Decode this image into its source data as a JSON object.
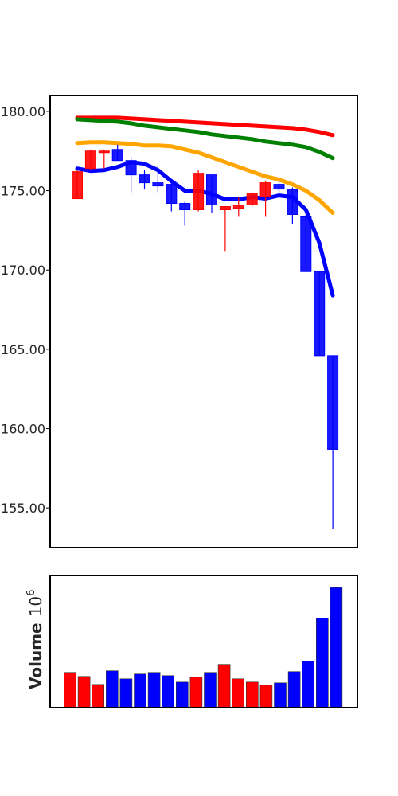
{
  "chart_data": [
    {
      "type": "candlestick",
      "title": "",
      "xlabel": "",
      "ylabel": "",
      "ylim": [
        152.5,
        181.0
      ],
      "yticks": [
        "155.00",
        "160.00",
        "165.00",
        "170.00",
        "175.00",
        "180.00"
      ],
      "ytick_values": [
        155,
        160,
        165,
        170,
        175,
        180
      ],
      "grid": false,
      "up_color": "#ff0000",
      "down_color": "#0000ff",
      "candles": [
        {
          "open": 174.5,
          "high": 176.3,
          "low": 174.5,
          "close": 176.2
        },
        {
          "open": 176.4,
          "high": 177.6,
          "low": 176.3,
          "close": 177.5
        },
        {
          "open": 177.4,
          "high": 177.6,
          "low": 176.4,
          "close": 177.5
        },
        {
          "open": 177.6,
          "high": 177.9,
          "low": 176.9,
          "close": 176.9
        },
        {
          "open": 176.9,
          "high": 177.1,
          "low": 174.9,
          "close": 176.0
        },
        {
          "open": 176.0,
          "high": 176.3,
          "low": 175.1,
          "close": 175.5
        },
        {
          "open": 175.5,
          "high": 176.6,
          "low": 174.9,
          "close": 175.3
        },
        {
          "open": 175.4,
          "high": 175.6,
          "low": 173.7,
          "close": 174.2
        },
        {
          "open": 174.2,
          "high": 174.3,
          "low": 172.8,
          "close": 173.8
        },
        {
          "open": 173.8,
          "high": 176.3,
          "low": 173.7,
          "close": 176.1
        },
        {
          "open": 176.0,
          "high": 176.0,
          "low": 173.6,
          "close": 174.1
        },
        {
          "open": 173.8,
          "high": 174.0,
          "low": 171.2,
          "close": 174.0
        },
        {
          "open": 173.9,
          "high": 174.6,
          "low": 173.4,
          "close": 174.1
        },
        {
          "open": 174.1,
          "high": 174.9,
          "low": 174.0,
          "close": 174.8
        },
        {
          "open": 174.6,
          "high": 175.6,
          "low": 173.4,
          "close": 175.5
        },
        {
          "open": 175.4,
          "high": 175.6,
          "low": 174.9,
          "close": 175.1
        },
        {
          "open": 175.1,
          "high": 175.2,
          "low": 172.9,
          "close": 173.5
        },
        {
          "open": 173.4,
          "high": 173.5,
          "low": 169.9,
          "close": 169.9
        },
        {
          "open": 169.9,
          "high": 169.9,
          "low": 164.6,
          "close": 164.6
        },
        {
          "open": 164.6,
          "high": 164.6,
          "low": 153.7,
          "close": 158.7
        }
      ],
      "moving_averages": [
        {
          "color": "#ff0000",
          "values": [
            179.6,
            179.6,
            179.6,
            179.6,
            179.55,
            179.5,
            179.45,
            179.4,
            179.35,
            179.3,
            179.25,
            179.2,
            179.15,
            179.1,
            179.05,
            179.0,
            178.95,
            178.85,
            178.7,
            178.5
          ]
        },
        {
          "color": "#008000",
          "values": [
            179.5,
            179.45,
            179.4,
            179.35,
            179.25,
            179.1,
            179.0,
            178.9,
            178.8,
            178.7,
            178.55,
            178.45,
            178.35,
            178.25,
            178.1,
            178.0,
            177.9,
            177.75,
            177.45,
            177.05
          ]
        },
        {
          "color": "#ffa500",
          "values": [
            178.0,
            178.05,
            178.05,
            178.0,
            177.95,
            177.85,
            177.85,
            177.8,
            177.6,
            177.4,
            177.1,
            176.8,
            176.5,
            176.2,
            175.9,
            175.7,
            175.4,
            175.0,
            174.4,
            173.6
          ]
        },
        {
          "color": "#0000ff",
          "values": [
            176.4,
            176.25,
            176.3,
            176.5,
            176.8,
            176.7,
            176.3,
            175.6,
            175.0,
            175.0,
            174.8,
            174.45,
            174.45,
            174.6,
            174.5,
            174.7,
            174.6,
            173.8,
            171.7,
            168.4
          ]
        }
      ]
    },
    {
      "type": "bar",
      "ylabel": "Volume",
      "ylabel_exponent": "6",
      "grid": false,
      "colors": [
        "#ff0000",
        "#ff0000",
        "#ff0000",
        "#0000ff",
        "#0000ff",
        "#0000ff",
        "#0000ff",
        "#0000ff",
        "#0000ff",
        "#ff0000",
        "#0000ff",
        "#ff0000",
        "#ff0000",
        "#ff0000",
        "#ff0000",
        "#0000ff",
        "#0000ff",
        "#0000ff",
        "#0000ff",
        "#0000ff"
      ],
      "values": [
        44,
        39,
        29,
        46,
        36,
        42,
        44,
        40,
        32,
        38,
        44,
        54,
        36,
        32,
        28,
        31,
        45,
        58,
        112,
        150
      ],
      "ylim": [
        0,
        165
      ]
    }
  ]
}
